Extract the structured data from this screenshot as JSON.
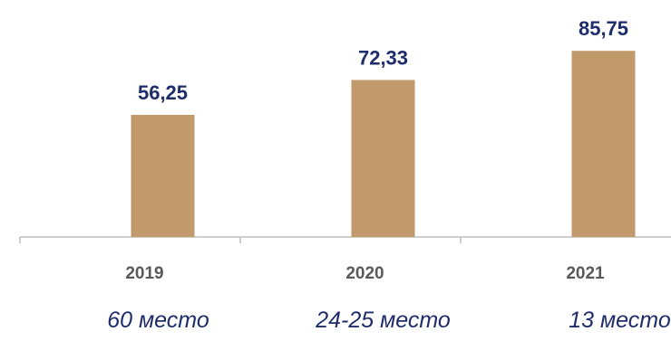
{
  "colors": {
    "bar": "#c09a6b",
    "label": "#1f2d6b",
    "tick": "#595959",
    "axis": "#bfbfbf"
  },
  "chart_data": {
    "type": "bar",
    "categories": [
      "2019",
      "2020",
      "2021"
    ],
    "values": [
      56.25,
      72.33,
      85.75
    ],
    "value_labels": [
      "56,25",
      "72,33",
      "85,75"
    ],
    "ylim": [
      0,
      100
    ],
    "grid": false,
    "legend": "none"
  },
  "rank_labels": [
    "60 место",
    "24-25 место",
    "13 место"
  ]
}
